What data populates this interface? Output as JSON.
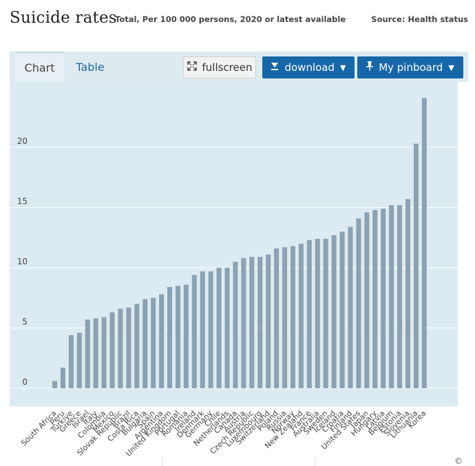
{
  "header": {
    "title": "Suicide rates",
    "subtitle": "Total, Per 100 000 persons, 2020 or latest available",
    "source": "Source: Health status"
  },
  "tabs": [
    {
      "label": "Chart",
      "active": true
    },
    {
      "label": "Table",
      "active": false
    }
  ],
  "toolbar": {
    "fullscreen_label": "fullscreen",
    "download_label": "download",
    "pinboard_label": "My pinboard"
  },
  "icons": {
    "fullscreen": "fullscreen-icon",
    "download": "download-icon",
    "pinboard": "pin-icon",
    "caret": "caret-down-icon"
  },
  "colors": {
    "bar": "#8ba2b3",
    "plot_bg": "#dcebf1",
    "button": "#1667a8"
  },
  "footer": {
    "copyright": "©"
  },
  "chart_data": {
    "type": "bar",
    "categories": [
      "South Africa",
      "Peru",
      "Türkiye",
      "Greece",
      "Israel",
      "Italy",
      "Colombia",
      "Mexico",
      "Slovak Republic",
      "Brazil",
      "Costa Rica",
      "Bulgaria",
      "Spain",
      "Argentina",
      "United Kingdom",
      "Portugal",
      "Romania",
      "Ireland",
      "Denmark",
      "Germany",
      "Chile",
      "Netherlands",
      "Canada",
      "Austria",
      "Czech Republic",
      "Luxembourg",
      "Switzerland",
      "Poland",
      "Russia",
      "Norway",
      "New Zealand",
      "France",
      "Australia",
      "Sweden",
      "Iceland",
      "Croatia",
      "Finland",
      "United States",
      "Japan",
      "Hungary",
      "Latvia",
      "Belgium",
      "Estonia",
      "Slovenia",
      "Lithuania",
      "Korea"
    ],
    "values": [
      0.6,
      1.7,
      4.4,
      4.6,
      5.7,
      5.8,
      5.9,
      6.3,
      6.6,
      6.7,
      7.0,
      7.4,
      7.5,
      7.8,
      8.4,
      8.5,
      8.6,
      9.4,
      9.7,
      9.7,
      10.0,
      10.0,
      10.5,
      10.8,
      10.9,
      10.9,
      11.1,
      11.6,
      11.7,
      11.8,
      12.0,
      12.3,
      12.4,
      12.4,
      12.7,
      13.0,
      13.4,
      14.1,
      14.6,
      14.8,
      14.9,
      15.2,
      15.2,
      15.7,
      20.3,
      24.1
    ],
    "yticks": [
      0,
      5,
      10,
      15,
      20
    ],
    "ylim": [
      0,
      25
    ],
    "grid": true,
    "legend": "none"
  }
}
